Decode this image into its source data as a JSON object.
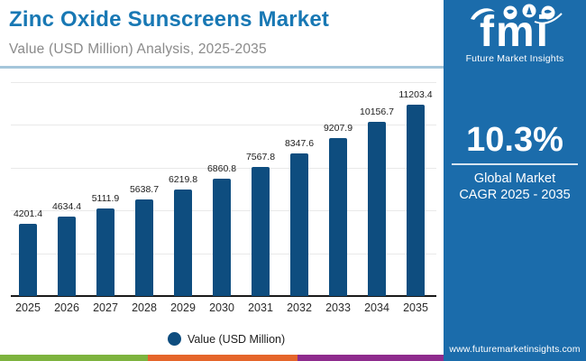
{
  "header": {
    "title": "Zinc Oxide Sunscreens Market",
    "subtitle": "Value (USD Million) Analysis, 2025-2035"
  },
  "chart_data": {
    "type": "bar",
    "title": "Zinc Oxide Sunscreens Market",
    "subtitle": "Value (USD Million) Analysis, 2025-2035",
    "categories": [
      "2025",
      "2026",
      "2027",
      "2028",
      "2029",
      "2030",
      "2031",
      "2032",
      "2033",
      "2034",
      "2035"
    ],
    "values": [
      4201.4,
      4634.4,
      5111.9,
      5638.7,
      6219.8,
      6860.8,
      7567.8,
      8347.6,
      9207.9,
      10156.7,
      11203.4
    ],
    "series_name": "Value (USD Million)",
    "xlabel": "",
    "ylabel": "",
    "ylim": [
      0,
      12500
    ],
    "gridline_step": 2500,
    "grid": true,
    "bar_color": "#0e4d7f",
    "legend_position": "bottom"
  },
  "legend": {
    "label": "Value (USD Million)",
    "marker_color": "#0e4d7f"
  },
  "sidebar": {
    "logo_text": "fmi",
    "logo_caption": "Future Market Insights",
    "cagr_value": "10.3%",
    "cagr_label_line1": "Global Market",
    "cagr_label_line2": "CAGR 2025 - 2035",
    "website": "www.futuremarketinsights.com",
    "background_color": "#1b6cab"
  },
  "footer_stripes": {
    "green": "#7db33e",
    "orange": "#e5652a",
    "purple": "#8e2b8d"
  }
}
